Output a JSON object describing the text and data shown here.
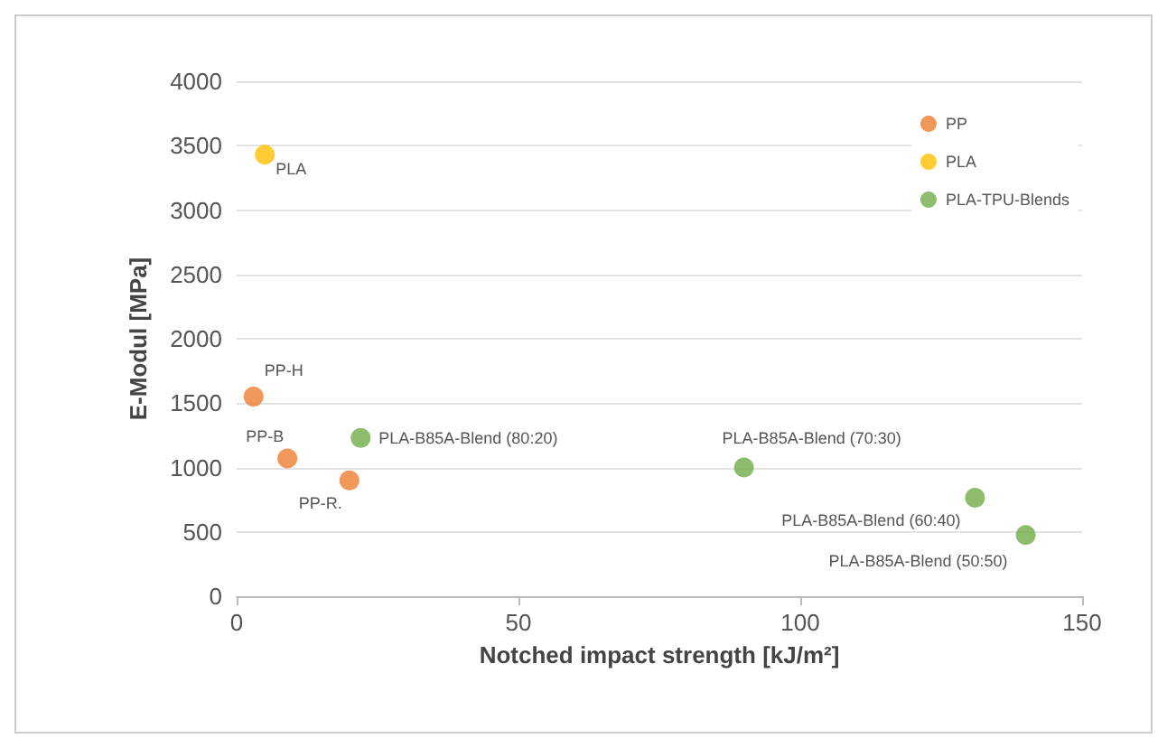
{
  "chart_data": {
    "type": "scatter",
    "xlabel": "Notched impact strength [kJ/m²]",
    "ylabel": "E-Modul [MPa]",
    "series": [
      {
        "name": "PP",
        "color": "#ed7d31",
        "x": [
          3,
          9,
          20
        ],
        "values": [
          1550,
          1070,
          900
        ]
      },
      {
        "name": "PLA",
        "color": "#ffc000",
        "x": [
          5
        ],
        "values": [
          3430
        ]
      },
      {
        "name": "PLA-TPU-Blends",
        "color": "#70ad47",
        "x": [
          22,
          90,
          131,
          140
        ],
        "values": [
          1230,
          1000,
          765,
          475
        ]
      }
    ],
    "xlim": [
      0,
      150
    ],
    "xticks": [
      0,
      50,
      100,
      150
    ],
    "ylim": [
      0,
      4000
    ],
    "yticks": [
      0,
      500,
      1000,
      1500,
      2000,
      2500,
      3000,
      3500,
      4000
    ],
    "grid": "y",
    "legend": "top right",
    "marker": "circle",
    "annotations": [
      {
        "text": "PLA",
        "x": 5,
        "y": 3430
      },
      {
        "text": "PP-H",
        "x": 3,
        "y": 1550
      },
      {
        "text": "PP-B",
        "x": 9,
        "y": 1070
      },
      {
        "text": "PP-R.",
        "x": 20,
        "y": 900
      },
      {
        "text": "PLA-B85A-Blend (80:20)",
        "x": 22,
        "y": 1230
      },
      {
        "text": "PLA-B85A-Blend (70:30)",
        "x": 90,
        "y": 1000
      },
      {
        "text": "PLA-B85A-Blend (60:40)",
        "x": 131,
        "y": 765
      },
      {
        "text": "PLA-B85A-Blend (50:50)",
        "x": 140,
        "y": 475
      }
    ]
  }
}
